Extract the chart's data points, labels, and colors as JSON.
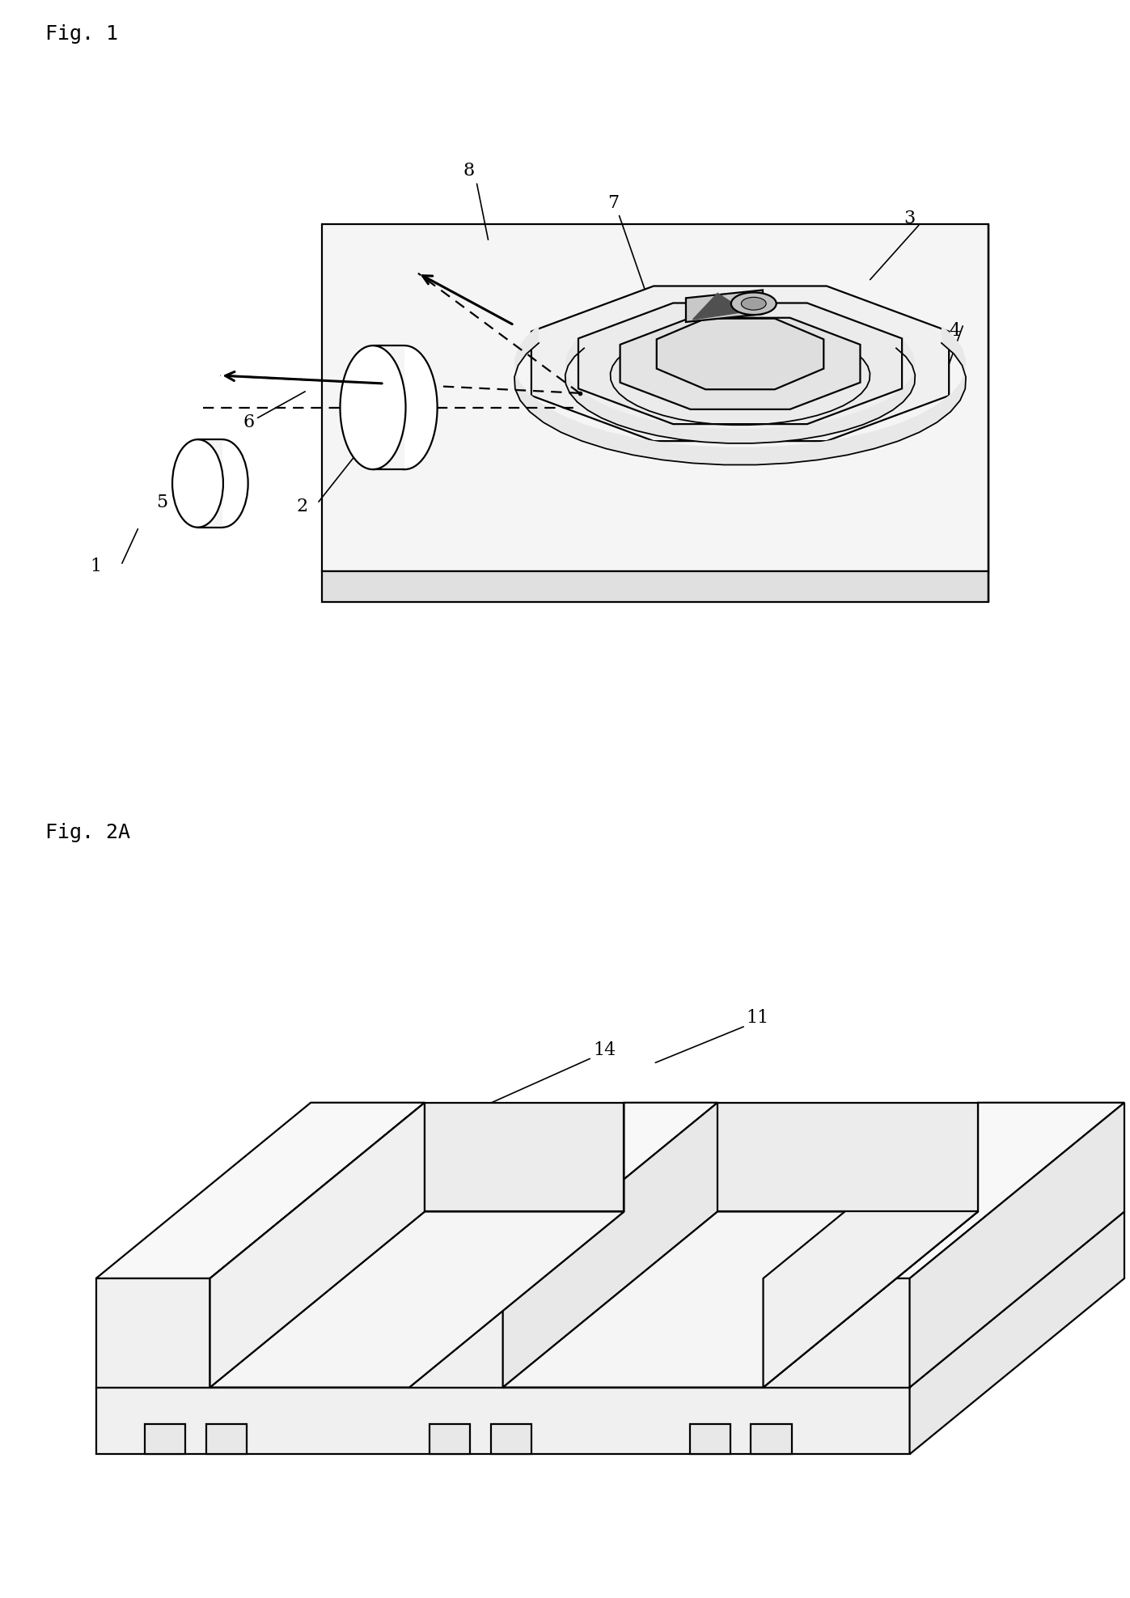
{
  "fig1_label": "Fig. 1",
  "fig2a_label": "Fig. 2A",
  "background": "#ffffff",
  "lc": "#000000",
  "lw": 1.6,
  "fs": 16
}
